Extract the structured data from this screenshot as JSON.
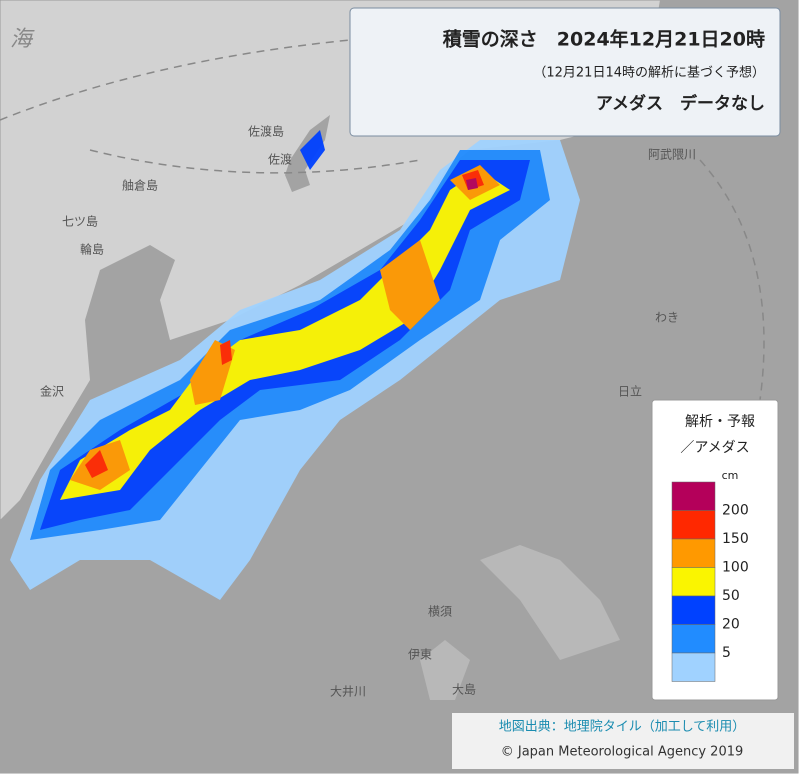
{
  "header": {
    "title": "積雪の深さ　2024年12月21日20時",
    "subtitle": "（12月21日14時の解析に基づく予想）",
    "note": "アメダス　データなし"
  },
  "legend": {
    "title_line1": "解析・予報",
    "title_line2": "／アメダス",
    "unit": "cm",
    "base_color": "#a0d2ff",
    "levels": [
      {
        "value": 200,
        "color": "#b4005a"
      },
      {
        "value": 150,
        "color": "#ff2800"
      },
      {
        "value": 100,
        "color": "#ff9900"
      },
      {
        "value": 50,
        "color": "#faf500"
      },
      {
        "value": 20,
        "color": "#0041ff"
      },
      {
        "value": 5,
        "color": "#218cff"
      }
    ]
  },
  "places": [
    {
      "label": "海"
    },
    {
      "label": "佐渡島"
    },
    {
      "label": "佐渡"
    },
    {
      "label": "舳倉島"
    },
    {
      "label": "七ツ島"
    },
    {
      "label": "輪島"
    },
    {
      "label": "金沢"
    },
    {
      "label": "阿武隈川"
    },
    {
      "label": "わき"
    },
    {
      "label": "日立"
    },
    {
      "label": "横須"
    },
    {
      "label": "伊東"
    },
    {
      "label": "大島"
    },
    {
      "label": "大井川"
    }
  ],
  "credits": {
    "source": "地図出典：地理院タイル（加工して利用）",
    "copyright": "© Japan Meteorological Agency 2019"
  }
}
